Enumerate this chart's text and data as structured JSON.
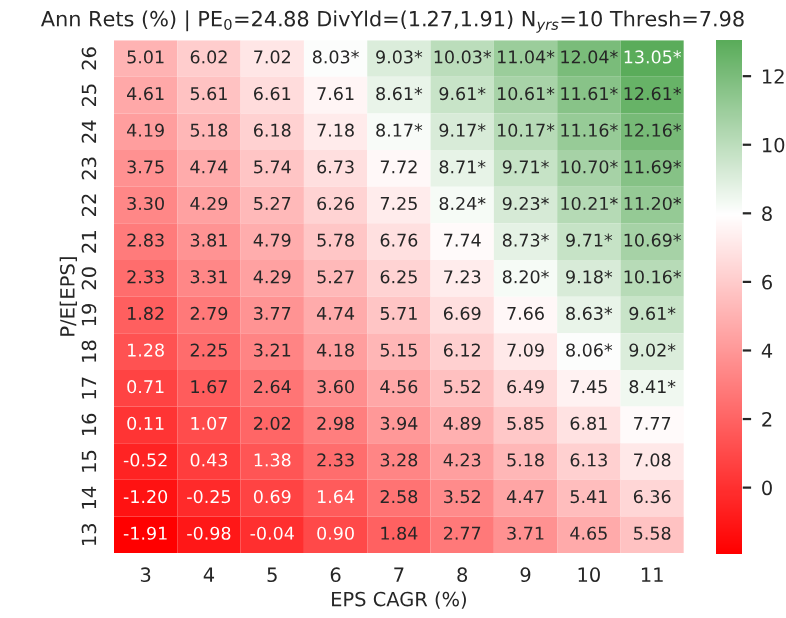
{
  "chart_data": {
    "type": "heatmap",
    "title": "Ann Rets (%) | PE$_{0}$=24.88 DivYld=(1.27,1.91) N$_{yrs}$=10 Thresh=7.98",
    "xlabel": "EPS CAGR (%)",
    "ylabel": "P/E[EPS]",
    "categories": [
      "3",
      "4",
      "5",
      "6",
      "7",
      "8",
      "9",
      "10",
      "11"
    ],
    "y_categories": [
      "26",
      "25",
      "24",
      "23",
      "22",
      "21",
      "20",
      "19",
      "18",
      "17",
      "16",
      "15",
      "14",
      "13"
    ],
    "cells": [
      [
        5.01,
        6.02,
        7.02,
        8.03,
        9.03,
        10.03,
        11.04,
        12.04,
        13.05
      ],
      [
        4.61,
        5.61,
        6.61,
        7.61,
        8.61,
        9.61,
        10.61,
        11.61,
        12.61
      ],
      [
        4.19,
        5.18,
        6.18,
        7.18,
        8.17,
        9.17,
        10.17,
        11.16,
        12.16
      ],
      [
        3.75,
        4.74,
        5.74,
        6.73,
        7.72,
        8.71,
        9.71,
        10.7,
        11.69
      ],
      [
        3.3,
        4.29,
        5.27,
        6.26,
        7.25,
        8.24,
        9.23,
        10.21,
        11.2
      ],
      [
        2.83,
        3.81,
        4.79,
        5.78,
        6.76,
        7.74,
        8.73,
        9.71,
        10.69
      ],
      [
        2.33,
        3.31,
        4.29,
        5.27,
        6.25,
        7.23,
        8.2,
        9.18,
        10.16
      ],
      [
        1.82,
        2.79,
        3.77,
        4.74,
        5.71,
        6.69,
        7.66,
        8.63,
        9.61
      ],
      [
        1.28,
        2.25,
        3.21,
        4.18,
        5.15,
        6.12,
        7.09,
        8.06,
        9.02
      ],
      [
        0.71,
        1.67,
        2.64,
        3.6,
        4.56,
        5.52,
        6.49,
        7.45,
        8.41
      ],
      [
        0.11,
        1.07,
        2.02,
        2.98,
        3.94,
        4.89,
        5.85,
        6.81,
        7.77
      ],
      [
        -0.52,
        0.43,
        1.38,
        2.33,
        3.28,
        4.23,
        5.18,
        6.13,
        7.08
      ],
      [
        -1.2,
        -0.25,
        0.69,
        1.64,
        2.58,
        3.52,
        4.47,
        5.41,
        6.36
      ],
      [
        -1.91,
        -0.98,
        -0.04,
        0.9,
        1.84,
        2.77,
        3.71,
        4.65,
        5.58
      ]
    ],
    "cell_labels": [
      [
        "5.01",
        "6.02",
        "7.02",
        "8.03*",
        "9.03*",
        "10.03*",
        "11.04*",
        "12.04*",
        "13.05*"
      ],
      [
        "4.61",
        "5.61",
        "6.61",
        "7.61",
        "8.61*",
        "9.61*",
        "10.61*",
        "11.61*",
        "12.61*"
      ],
      [
        "4.19",
        "5.18",
        "6.18",
        "7.18",
        "8.17*",
        "9.17*",
        "10.17*",
        "11.16*",
        "12.16*"
      ],
      [
        "3.75",
        "4.74",
        "5.74",
        "6.73",
        "7.72",
        "8.71*",
        "9.71*",
        "10.70*",
        "11.69*"
      ],
      [
        "3.30",
        "4.29",
        "5.27",
        "6.26",
        "7.25",
        "8.24*",
        "9.23*",
        "10.21*",
        "11.20*"
      ],
      [
        "2.83",
        "3.81",
        "4.79",
        "5.78",
        "6.76",
        "7.74",
        "8.73*",
        "9.71*",
        "10.69*"
      ],
      [
        "2.33",
        "3.31",
        "4.29",
        "5.27",
        "6.25",
        "7.23",
        "8.20*",
        "9.18*",
        "10.16*"
      ],
      [
        "1.82",
        "2.79",
        "3.77",
        "4.74",
        "5.71",
        "6.69",
        "7.66",
        "8.63*",
        "9.61*"
      ],
      [
        "1.28",
        "2.25",
        "3.21",
        "4.18",
        "5.15",
        "6.12",
        "7.09",
        "8.06*",
        "9.02*"
      ],
      [
        "0.71",
        "1.67",
        "2.64",
        "3.60",
        "4.56",
        "5.52",
        "6.49",
        "7.45",
        "8.41*"
      ],
      [
        "0.11",
        "1.07",
        "2.02",
        "2.98",
        "3.94",
        "4.89",
        "5.85",
        "6.81",
        "7.77"
      ],
      [
        "-0.52",
        "0.43",
        "1.38",
        "2.33",
        "3.28",
        "4.23",
        "5.18",
        "6.13",
        "7.08"
      ],
      [
        "-1.20",
        "-0.25",
        "0.69",
        "1.64",
        "2.58",
        "3.52",
        "4.47",
        "5.41",
        "6.36"
      ],
      [
        "-1.91",
        "-0.98",
        "-0.04",
        "0.90",
        "1.84",
        "2.77",
        "3.71",
        "4.65",
        "5.58"
      ]
    ],
    "clim": [
      -1.91,
      13.05
    ],
    "cticks": [
      0,
      2,
      4,
      6,
      8,
      10,
      12
    ],
    "colors": [
      "#ff0000",
      "#ffffff",
      "#5aac5a"
    ]
  }
}
